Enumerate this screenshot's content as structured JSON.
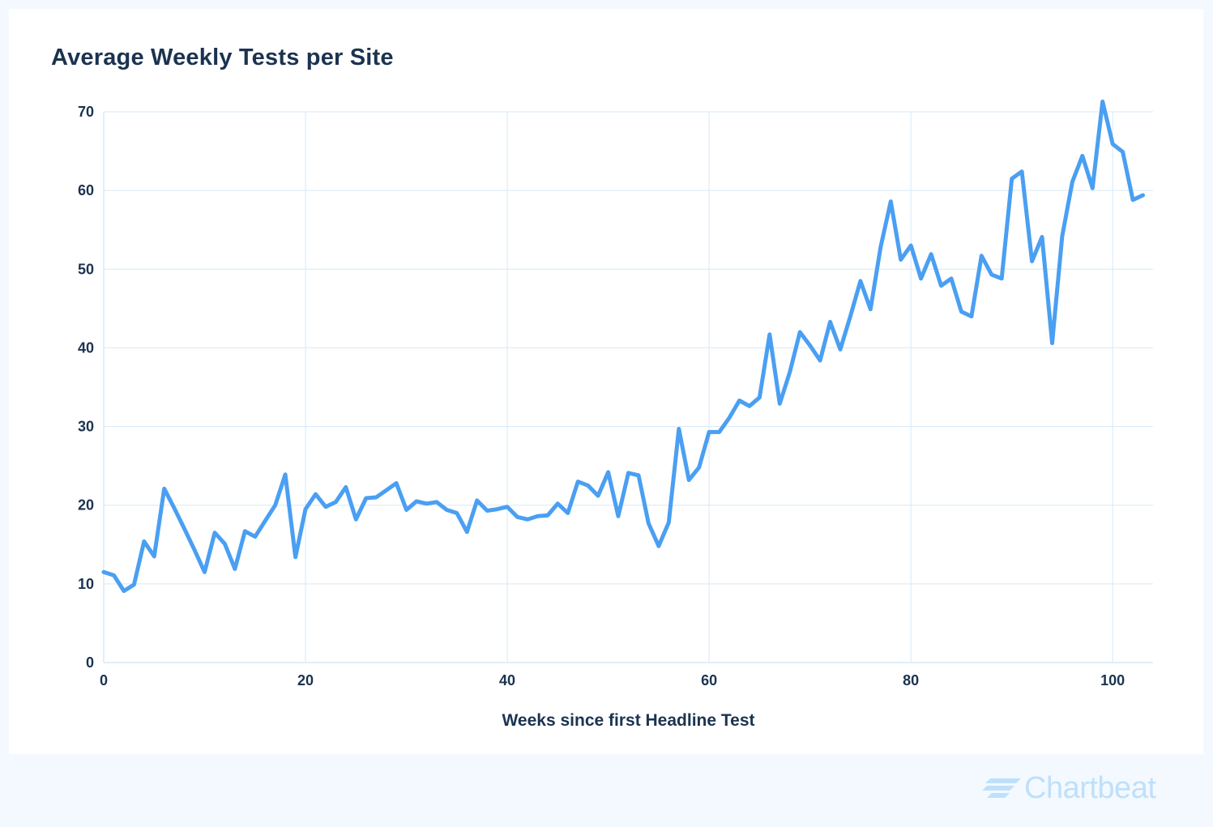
{
  "brand": {
    "name": "Chartbeat",
    "logo_icon": "chartbeat-logo-icon"
  },
  "colors": {
    "line": "#4a9ff2",
    "grid": "#d6e9f8",
    "text": "#1b3350",
    "background": "#f3f9fe",
    "card": "#ffffff",
    "brand": "#bfe0fa"
  },
  "chart_data": {
    "type": "line",
    "title": "Average Weekly Tests per Site",
    "xlabel": "Weeks since first Headline Test",
    "ylabel": "",
    "xlim": [
      0,
      104
    ],
    "ylim": [
      0,
      70
    ],
    "xticks": [
      0,
      20,
      40,
      60,
      80,
      100
    ],
    "yticks": [
      0,
      10,
      20,
      30,
      40,
      50,
      60,
      70
    ],
    "grid": true,
    "legend": "none",
    "series": [
      {
        "x": [
          0,
          1,
          2,
          3,
          4,
          5,
          6,
          7,
          8,
          9,
          10,
          11,
          12,
          13,
          14,
          15,
          16,
          17,
          18,
          19,
          20,
          21,
          22,
          23,
          24,
          25,
          26,
          27,
          28,
          29,
          30,
          31,
          32,
          33,
          34,
          35,
          36,
          37,
          38,
          39,
          40,
          41,
          42,
          43,
          44,
          45,
          46,
          47,
          48,
          49,
          50,
          51,
          52,
          53,
          54,
          55,
          56,
          57,
          58,
          59,
          60,
          61,
          62,
          63,
          64,
          65,
          66,
          67,
          68,
          69,
          70,
          71,
          72,
          73,
          74,
          75,
          76,
          77,
          78,
          79,
          80,
          81,
          82,
          83,
          84,
          85,
          86,
          87,
          88,
          89,
          90,
          91,
          92,
          93,
          94,
          95,
          96,
          97,
          98,
          99,
          100,
          101,
          102,
          103
        ],
        "values": [
          11.5,
          11.1,
          9.1,
          9.9,
          15.4,
          13.5,
          22.1,
          19.6,
          17.0,
          14.3,
          11.5,
          16.5,
          15.1,
          11.9,
          16.7,
          16.0,
          18.0,
          20.0,
          23.9,
          13.4,
          19.5,
          21.4,
          19.8,
          20.4,
          22.3,
          18.2,
          20.9,
          21.0,
          21.9,
          22.8,
          19.4,
          20.5,
          20.2,
          20.4,
          19.4,
          19.0,
          16.6,
          20.6,
          19.3,
          19.5,
          19.8,
          18.5,
          18.2,
          18.6,
          18.7,
          20.2,
          19.0,
          23.0,
          22.5,
          21.2,
          24.2,
          18.6,
          24.1,
          23.8,
          17.7,
          14.8,
          17.8,
          29.7,
          23.2,
          24.8,
          29.3,
          29.3,
          31.1,
          33.3,
          32.6,
          33.7,
          41.7,
          32.9,
          36.9,
          42.0,
          40.3,
          38.4,
          43.3,
          39.8,
          44.0,
          48.5,
          44.9,
          52.8,
          58.6,
          51.2,
          53.0,
          48.8,
          51.9,
          47.9,
          48.8,
          44.6,
          44.0,
          51.7,
          49.3,
          48.8,
          61.5,
          62.4,
          51.0,
          54.1,
          40.6,
          54.2,
          61.1,
          64.4,
          60.3,
          71.3,
          65.9,
          64.9,
          58.8,
          59.4
        ]
      }
    ]
  }
}
